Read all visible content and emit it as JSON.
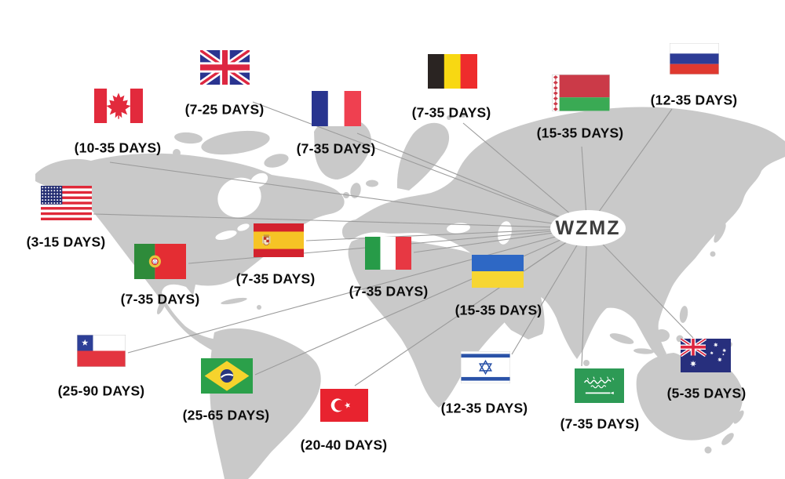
{
  "brand": {
    "text": "WZMZ",
    "bg": "#ffffff",
    "color": "#3d3d3d"
  },
  "map": {
    "land_color": "#c9c9c9",
    "line_color": "#9b9b9b",
    "sea_color": "#ffffff",
    "label_color": "#0c0c0c"
  },
  "countries": [
    {
      "id": "canada",
      "name": "Canada",
      "days": "(10-35 DAYS)",
      "flag_colors": {
        "red": "#e22a3c",
        "white": "#ffffff"
      }
    },
    {
      "id": "uk",
      "name": "United Kingdom",
      "days": "(7-25 DAYS)",
      "flag_colors": {
        "blue": "#2a3490",
        "red": "#dd2741",
        "white": "#ffffff"
      }
    },
    {
      "id": "france",
      "name": "France",
      "days": "(7-35 DAYS)",
      "flag_colors": {
        "blue": "#28348f",
        "red": "#ef4050",
        "white": "#ffffff"
      }
    },
    {
      "id": "belgium",
      "name": "Belgium",
      "days": "(7-35 DAYS)",
      "flag_colors": {
        "black": "#2a2422",
        "yellow": "#f8d812",
        "red": "#ee2c2c"
      }
    },
    {
      "id": "belarus",
      "name": "Belarus",
      "days": "(15-35 DAYS)",
      "flag_colors": {
        "red": "#cb3a48",
        "green": "#3aaa54",
        "white": "#ffffff"
      }
    },
    {
      "id": "russia",
      "name": "Russia",
      "days": "(12-35 DAYS)",
      "flag_colors": {
        "white": "#ffffff",
        "blue": "#2d3c96",
        "red": "#df392f"
      }
    },
    {
      "id": "usa",
      "name": "United States",
      "days": "(3-15 DAYS)",
      "flag_colors": {
        "red": "#e02838",
        "blue": "#232d72",
        "white": "#ffffff"
      }
    },
    {
      "id": "spain",
      "name": "Spain",
      "days": "(7-35 DAYS)",
      "flag_colors": {
        "red": "#d3222e",
        "yellow": "#f6c425"
      }
    },
    {
      "id": "portugal",
      "name": "Portugal",
      "days": "(7-35 DAYS)",
      "flag_colors": {
        "green": "#2e8b3a",
        "red": "#e42d33",
        "gold": "#eac23f"
      }
    },
    {
      "id": "italy",
      "name": "Italy",
      "days": "(7-35 DAYS)",
      "flag_colors": {
        "green": "#279b48",
        "white": "#ffffff",
        "red": "#e73843"
      }
    },
    {
      "id": "ukraine",
      "name": "Ukraine",
      "days": "(15-35 DAYS)",
      "flag_colors": {
        "blue": "#2e68c5",
        "yellow": "#f6d633"
      }
    },
    {
      "id": "chile",
      "name": "Chile",
      "days": "(25-90 DAYS)",
      "flag_colors": {
        "blue": "#2d3f97",
        "red": "#e33540",
        "white": "#ffffff"
      }
    },
    {
      "id": "brazil",
      "name": "Brazil",
      "days": "(25-65 DAYS)",
      "flag_colors": {
        "green": "#2ba04a",
        "yellow": "#f6d32d",
        "blue": "#28367e"
      }
    },
    {
      "id": "turkey",
      "name": "Turkey",
      "days": "(20-40 DAYS)",
      "flag_colors": {
        "red": "#e8232f",
        "white": "#ffffff"
      }
    },
    {
      "id": "israel",
      "name": "Israel",
      "days": "(12-35 DAYS)",
      "flag_colors": {
        "blue": "#2a52a8",
        "white": "#ffffff"
      }
    },
    {
      "id": "saudi_arabia",
      "name": "Saudi Arabia",
      "days": "(7-35 DAYS)",
      "flag_colors": {
        "green": "#2d9a55",
        "white": "#ffffff"
      }
    },
    {
      "id": "australia",
      "name": "Australia",
      "days": "(5-35 DAYS)",
      "flag_colors": {
        "blue": "#272f7d",
        "red": "#dd2741",
        "white": "#ffffff"
      }
    }
  ]
}
